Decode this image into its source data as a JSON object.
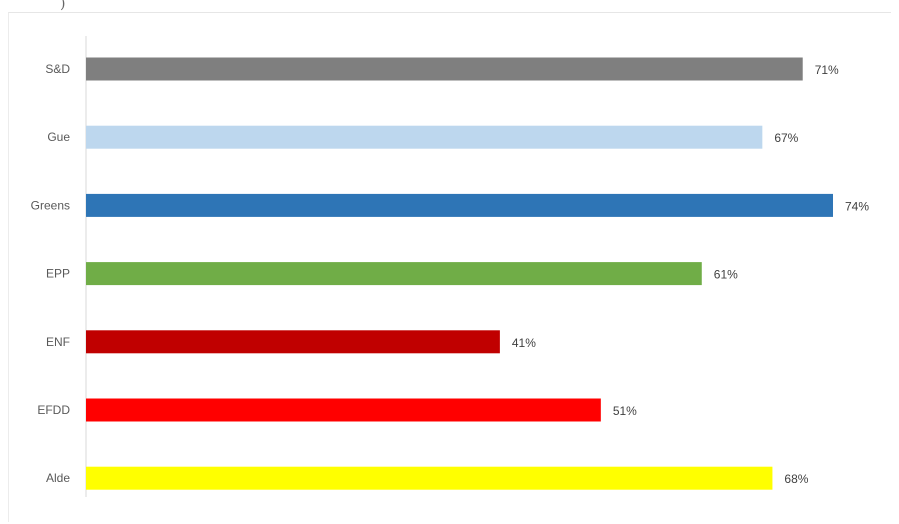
{
  "chart_data": {
    "type": "bar",
    "orientation": "horizontal",
    "title": "",
    "xlabel": "",
    "ylabel": "",
    "categories": [
      "S&D",
      "Gue",
      "Greens",
      "EPP",
      "ENF",
      "EFDD",
      "Alde"
    ],
    "values": [
      71,
      67,
      74,
      61,
      41,
      51,
      68
    ],
    "value_labels": [
      "71%",
      "67%",
      "74%",
      "61%",
      "41%",
      "51%",
      "68%"
    ],
    "colors": [
      "#7f7f7f",
      "#bdd7ee",
      "#2e75b6",
      "#70ad47",
      "#c00000",
      "#ff0000",
      "#ffff00"
    ],
    "xlim": [
      0,
      80
    ],
    "grid": false,
    "legend": "none"
  }
}
